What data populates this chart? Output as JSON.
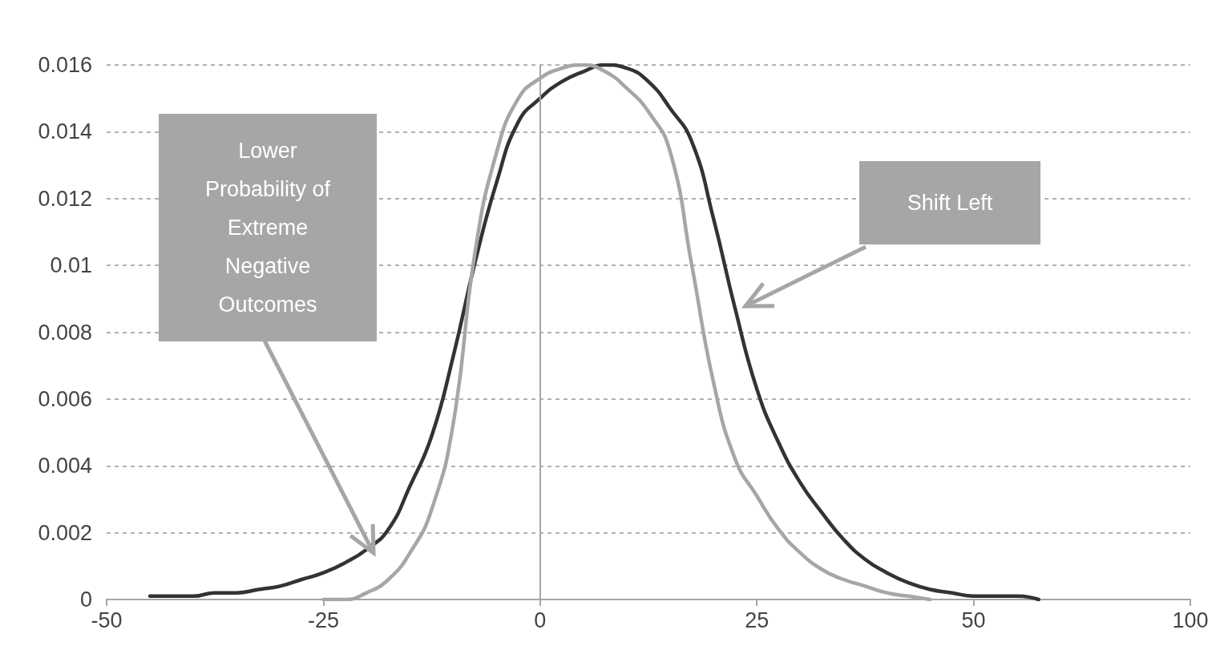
{
  "chart_data": {
    "type": "line",
    "categories": [
      "-50",
      null,
      null,
      null,
      null,
      null,
      null,
      null,
      null,
      null,
      "-25",
      null,
      null,
      null,
      null,
      null,
      null,
      null,
      null,
      null,
      "0",
      null,
      null,
      null,
      null,
      null,
      null,
      null,
      null,
      null,
      "25",
      null,
      null,
      null,
      null,
      null,
      null,
      null,
      null,
      null,
      "50",
      null,
      null,
      null,
      null,
      null,
      null,
      null,
      null,
      null,
      "100"
    ],
    "series": [
      {
        "color": "#333333",
        "values": [
          null,
          null,
          0.0001,
          0.0001,
          0.0001,
          0.0002,
          0.0002,
          0.0003,
          0.0004,
          0.0006,
          0.0008,
          0.0011,
          0.0015,
          0.0021,
          0.0034,
          0.0049,
          0.0073,
          0.0101,
          0.0125,
          0.0143,
          0.015,
          0.0155,
          0.0158,
          0.016,
          0.0159,
          0.0155,
          0.0147,
          0.0137,
          0.0114,
          0.0087,
          0.0063,
          0.0047,
          0.0035,
          0.0026,
          0.0018,
          0.0012,
          0.0008,
          0.0005,
          0.0003,
          0.0002,
          0.0001,
          0.0001,
          0.0001,
          0,
          null,
          null,
          null,
          null,
          null,
          null,
          null
        ]
      },
      {
        "color": "#a6a6a6",
        "values": [
          null,
          null,
          null,
          null,
          null,
          null,
          null,
          null,
          null,
          null,
          0,
          0,
          0.0002,
          0.0006,
          0.0014,
          0.0027,
          0.0053,
          0.0104,
          0.0134,
          0.015,
          0.0156,
          0.0159,
          0.016,
          0.0158,
          0.0153,
          0.0146,
          0.0134,
          0.01,
          0.0065,
          0.0042,
          0.0031,
          0.0021,
          0.0014,
          0.0009,
          0.0006,
          0.0004,
          0.0002,
          0.0001,
          0,
          null,
          null,
          null,
          null,
          null,
          null,
          null,
          null,
          null,
          null,
          null,
          null
        ]
      }
    ],
    "ylim": [
      0,
      0.016
    ],
    "yticks": [
      0,
      0.002,
      0.004,
      0.006,
      0.008,
      0.01,
      0.012,
      0.014,
      0.016
    ],
    "grid": "y",
    "marker": "none",
    "line_style": "solid",
    "ref_lines": [
      {
        "axis": "x",
        "value": "0",
        "color": "#a6a6a6"
      }
    ],
    "annotations": [
      "Lower Probability of Extreme Negative Outcomes",
      "Shift Left"
    ]
  }
}
